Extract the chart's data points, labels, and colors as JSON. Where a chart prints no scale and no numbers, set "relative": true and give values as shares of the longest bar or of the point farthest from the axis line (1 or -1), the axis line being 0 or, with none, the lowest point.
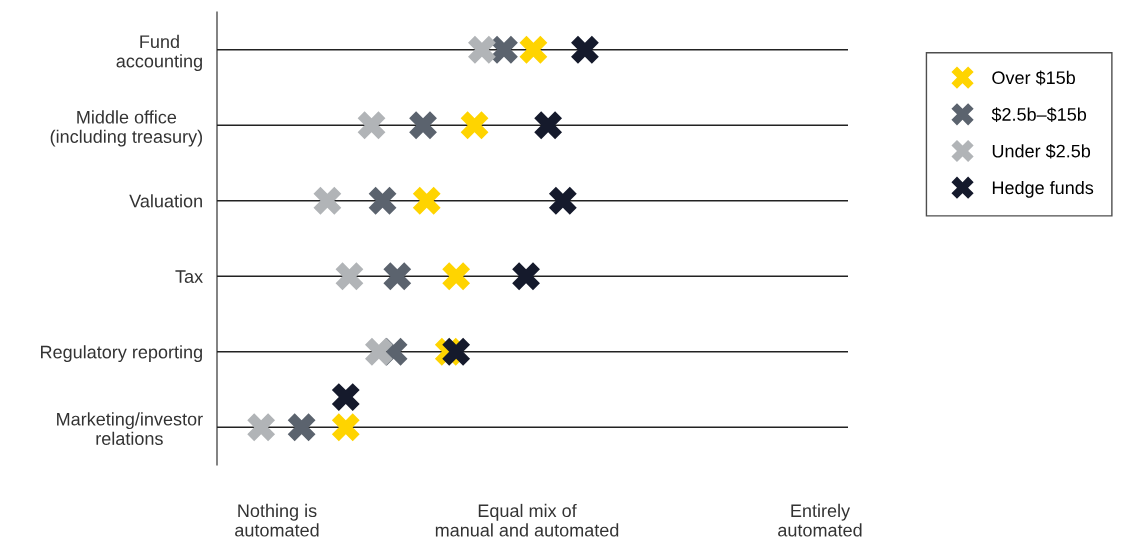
{
  "chart_data": {
    "type": "scatter",
    "orientation": "horizontal",
    "relative": true,
    "marker": "cross",
    "grid": "y",
    "legend": "right",
    "categories": [
      "Fund\naccounting",
      "Middle office\n(including treasury)",
      "Valuation",
      "Tax",
      "Regulatory reporting",
      "Marketing/investor\nrelations"
    ],
    "annotations": [
      "Nothing is\nautomated",
      "Equal mix of\nmanual and automated",
      "Entirely\nautomated"
    ],
    "series": [
      {
        "name": "Over $15b",
        "color": "#ffd400",
        "values": [
          0.86,
          0.7,
          0.57,
          0.65,
          0.63,
          0.35
        ]
      },
      {
        "name": "$2.5b–$15b",
        "color": "#5b636e",
        "values": [
          0.78,
          0.56,
          0.45,
          0.49,
          0.48,
          0.23
        ]
      },
      {
        "name": "Under $2.5b",
        "color": "#b1b4b7",
        "values": [
          0.72,
          0.42,
          0.3,
          0.36,
          0.44,
          0.12
        ]
      },
      {
        "name": "Hedge funds",
        "color": "#151a2c",
        "values": [
          1,
          0.9,
          0.94,
          0.84,
          0.65,
          0.35
        ]
      }
    ]
  }
}
